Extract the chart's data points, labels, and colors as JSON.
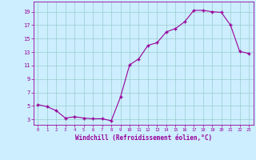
{
  "x": [
    0,
    1,
    2,
    3,
    4,
    5,
    6,
    7,
    8,
    9,
    10,
    11,
    12,
    13,
    14,
    15,
    16,
    17,
    18,
    19,
    20,
    21,
    22,
    23
  ],
  "y": [
    5.2,
    4.9,
    4.3,
    3.2,
    3.4,
    3.2,
    3.1,
    3.1,
    2.8,
    6.3,
    11.1,
    12.0,
    14.0,
    14.4,
    16.0,
    16.5,
    17.5,
    19.2,
    19.2,
    19.0,
    18.9,
    17.0,
    13.1,
    12.8
  ],
  "line_color": "#990099",
  "marker": "+",
  "bg_color": "#cceeff",
  "grid_color": "#99cccc",
  "xlabel": "Windchill (Refroidissement éolien,°C)",
  "xlabel_color": "#990099",
  "tick_color": "#990099",
  "yticks": [
    3,
    5,
    7,
    9,
    11,
    13,
    15,
    17,
    19
  ],
  "ylim": [
    2.2,
    20.5
  ],
  "xlim": [
    -0.5,
    23.5
  ],
  "figsize": [
    3.2,
    2.0
  ],
  "dpi": 100
}
